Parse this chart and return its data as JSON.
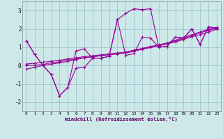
{
  "xlabel": "Windchill (Refroidissement éolien,°C)",
  "bg_color": "#cce8e8",
  "line_color": "#990099",
  "grid_color": "#99bbcc",
  "xlim": [
    -0.5,
    23.5
  ],
  "ylim": [
    -2.5,
    3.5
  ],
  "yticks": [
    -2,
    -1,
    0,
    1,
    2,
    3
  ],
  "xticks": [
    0,
    1,
    2,
    3,
    4,
    5,
    6,
    7,
    8,
    9,
    10,
    11,
    12,
    13,
    14,
    15,
    16,
    17,
    18,
    19,
    20,
    21,
    22,
    23
  ],
  "series": [
    [
      1.35,
      0.6,
      0.0,
      -0.5,
      -1.65,
      -1.2,
      -0.15,
      -0.1,
      0.4,
      0.4,
      0.5,
      2.5,
      2.85,
      3.1,
      3.05,
      3.1,
      1.0,
      1.05,
      1.55,
      1.5,
      2.0,
      1.15,
      2.1,
      2.05
    ],
    [
      1.35,
      0.6,
      0.0,
      -0.5,
      -1.65,
      -1.2,
      0.8,
      0.9,
      0.4,
      0.4,
      0.5,
      2.5,
      0.55,
      0.65,
      1.55,
      1.5,
      1.0,
      1.05,
      1.55,
      1.5,
      2.0,
      1.15,
      2.1,
      2.05
    ],
    [
      0.0,
      0.02,
      0.05,
      0.15,
      0.2,
      0.3,
      0.35,
      0.42,
      0.48,
      0.54,
      0.6,
      0.66,
      0.72,
      0.82,
      0.92,
      1.02,
      1.08,
      1.18,
      1.28,
      1.42,
      1.58,
      1.68,
      1.82,
      1.98
    ],
    [
      -0.2,
      -0.1,
      0.0,
      0.08,
      0.14,
      0.22,
      0.32,
      0.42,
      0.48,
      0.53,
      0.58,
      0.63,
      0.68,
      0.78,
      0.88,
      0.98,
      1.08,
      1.18,
      1.32,
      1.48,
      1.62,
      1.78,
      1.92,
      2.02
    ],
    [
      0.08,
      0.12,
      0.18,
      0.23,
      0.28,
      0.36,
      0.42,
      0.48,
      0.53,
      0.58,
      0.63,
      0.68,
      0.73,
      0.83,
      0.93,
      1.03,
      1.13,
      1.23,
      1.38,
      1.53,
      1.68,
      1.83,
      1.98,
      2.08
    ]
  ],
  "marker": "+"
}
